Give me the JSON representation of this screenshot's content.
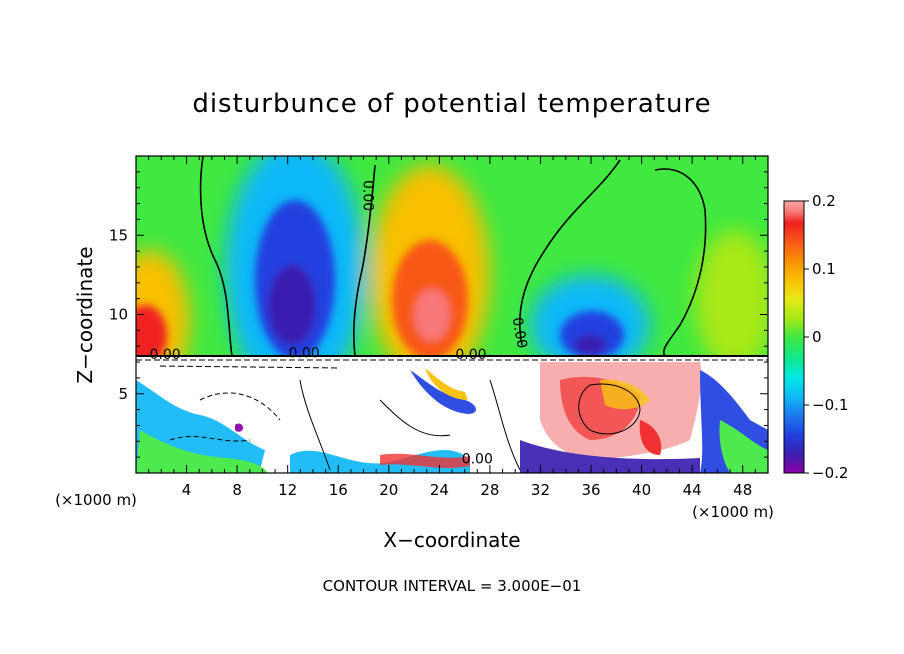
{
  "chart_data": {
    "type": "heatmap",
    "title": "disturbunce of potential temperature",
    "xlabel": "X−coordinate",
    "ylabel": "Z−coordinate",
    "x_unit_left": "(×1000 m)",
    "x_unit_right": "(×1000 m)",
    "footer": "CONTOUR INTERVAL = 3.000E−01",
    "xlim": [
      0,
      50
    ],
    "ylim": [
      0,
      20
    ],
    "x_ticks": [
      4,
      8,
      12,
      16,
      20,
      24,
      28,
      32,
      36,
      40,
      44,
      48
    ],
    "y_ticks": [
      5,
      10,
      15
    ],
    "colorbar": {
      "range": [
        -0.2,
        0.2
      ],
      "tick_values": [
        0.2,
        0.1,
        0,
        -0.1,
        -0.2
      ],
      "tick_labels": [
        "0.2",
        "0.1",
        "0",
        "−0.1",
        "−0.2"
      ],
      "colors": [
        "#8b00a8",
        "#3a1fb0",
        "#2040e0",
        "#1e78f0",
        "#10b8f8",
        "#00e8e0",
        "#10e890",
        "#40e840",
        "#a8e818",
        "#e8e818",
        "#f8c000",
        "#f89000",
        "#f85818",
        "#f02020",
        "#f87878",
        "#f8a8a8"
      ]
    },
    "contour_labels": [
      {
        "text": "0.00",
        "x": 18.0,
        "z": 17.5,
        "rotate": 90
      },
      {
        "text": "0.00",
        "x": 30.0,
        "z": 8.8,
        "rotate": 80
      },
      {
        "text": "0.00",
        "x": 2.3,
        "z": 7.2
      },
      {
        "text": "0.00",
        "x": 13.3,
        "z": 7.3
      },
      {
        "text": "0.00",
        "x": 26.5,
        "z": 7.2
      },
      {
        "text": "0.00",
        "x": 27.0,
        "z": 0.6
      }
    ],
    "upper_layer_anomalies": [
      {
        "x": 1.0,
        "z": 10.0,
        "value": 0.17
      },
      {
        "x": 12.5,
        "z": 11.5,
        "value": -0.19
      },
      {
        "x": 23.5,
        "z": 11.0,
        "value": 0.18
      },
      {
        "x": 35.0,
        "z": 9.0,
        "value": -0.15
      },
      {
        "x": 47.0,
        "z": 10.0,
        "value": 0.1
      }
    ]
  }
}
